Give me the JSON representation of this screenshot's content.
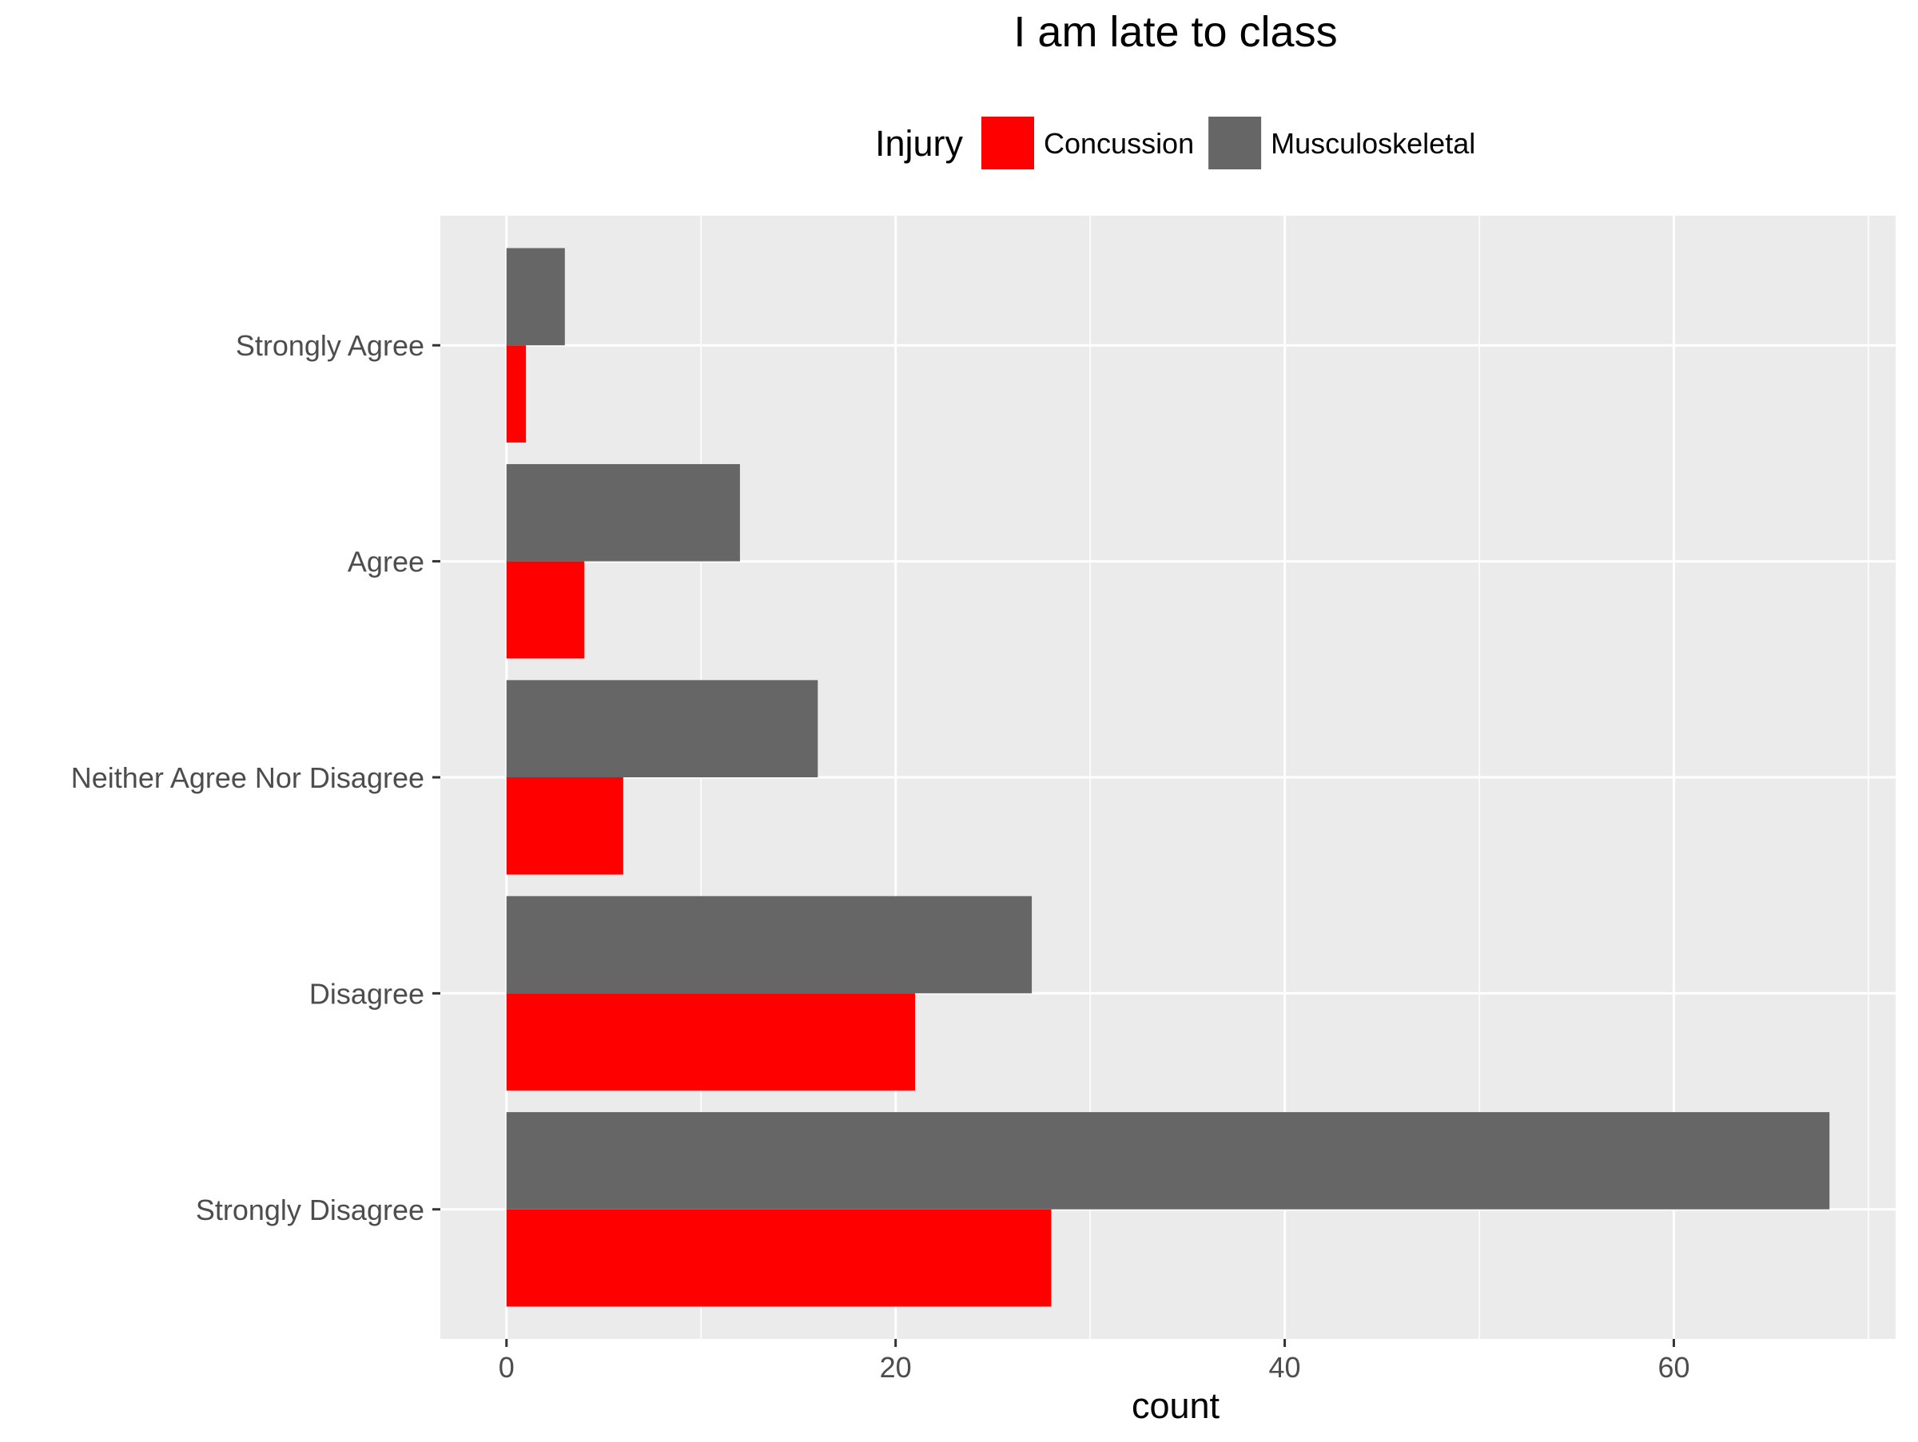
{
  "chart_data": {
    "type": "bar",
    "orientation": "horizontal",
    "title": "I am late to class",
    "xlabel": "count",
    "ylabel": "",
    "categories": [
      "Strongly Agree",
      "Agree",
      "Neither Agree Nor Disagree",
      "Disagree",
      "Strongly Disagree"
    ],
    "series": [
      {
        "name": "Concussion",
        "color": "#ff0000",
        "values": [
          1,
          4,
          6,
          21,
          28
        ]
      },
      {
        "name": "Musculoskeletal",
        "color": "#666666",
        "values": [
          3,
          12,
          16,
          27,
          68
        ]
      }
    ],
    "xlim": [
      -3.4,
      71.4
    ],
    "x_ticks": [
      0,
      20,
      40,
      60
    ],
    "grid": true,
    "legend": {
      "title": "Injury",
      "position": "top"
    },
    "colors": {
      "panel": "#ebebeb",
      "grid": "#ffffff",
      "axis_text": "#4d4d4d"
    }
  }
}
